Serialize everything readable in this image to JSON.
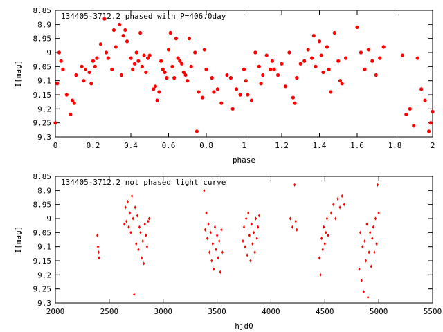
{
  "chart_data": [
    {
      "type": "scatter",
      "title": "134405-3712.2 phased with P=406.0day",
      "xlabel": "phase",
      "ylabel": "I[mag]",
      "xlim": [
        0,
        2
      ],
      "ylim": [
        9.3,
        8.85
      ],
      "y_inverted": true,
      "grid": false,
      "marker": "filled-circle",
      "color": "#ff0000",
      "x_ticks": [
        "0",
        "0.2",
        "0.4",
        "0.6",
        "0.8",
        "1",
        "1.2",
        "1.4",
        "1.6",
        "1.8",
        "2"
      ],
      "y_ticks": [
        "8.85",
        "8.9",
        "8.95",
        "9",
        "9.05",
        "9.1",
        "9.15",
        "9.2",
        "9.25",
        "9.3"
      ],
      "series": [
        {
          "x": [
            0.0,
            0.01,
            0.02,
            0.03,
            0.04,
            0.06,
            0.08,
            0.09,
            0.1,
            0.11,
            0.14,
            0.15,
            0.16,
            0.18,
            0.19,
            0.2,
            0.21,
            0.22,
            0.24,
            0.26,
            0.27,
            0.28,
            0.3,
            0.31,
            0.32,
            0.34,
            0.35,
            0.36,
            0.37,
            0.38,
            0.4,
            0.41,
            0.42,
            0.43,
            0.44,
            0.45,
            0.46,
            0.47,
            0.48,
            0.49,
            0.5,
            0.52,
            0.53,
            0.54,
            0.55,
            0.56,
            0.57,
            0.58,
            0.59,
            0.6,
            0.61,
            0.62,
            0.63,
            0.64,
            0.65,
            0.66,
            0.67,
            0.68,
            0.69,
            0.7,
            0.71,
            0.72,
            0.74,
            0.75,
            0.76,
            0.78,
            0.79,
            0.8,
            0.83,
            0.84,
            0.86,
            0.88,
            0.91,
            0.93,
            0.94,
            0.96,
            0.98,
            1.0,
            1.01,
            1.02,
            1.04,
            1.06,
            1.08,
            1.09,
            1.1,
            1.12,
            1.14,
            1.15,
            1.16,
            1.18,
            1.2,
            1.22,
            1.24,
            1.26,
            1.27,
            1.28,
            1.3,
            1.32,
            1.34,
            1.36,
            1.37,
            1.38,
            1.4,
            1.41,
            1.42,
            1.44,
            1.45,
            1.46,
            1.48,
            1.5,
            1.51,
            1.52,
            1.54,
            1.6,
            1.62,
            1.64,
            1.66,
            1.68,
            1.7,
            1.72,
            1.74,
            1.84,
            1.86,
            1.88,
            1.9,
            1.92,
            1.94,
            1.96,
            1.98,
            1.99,
            2.0
          ],
          "y": [
            9.25,
            9.11,
            9.0,
            9.03,
            9.06,
            9.15,
            9.22,
            9.17,
            9.18,
            9.08,
            9.05,
            9.1,
            9.06,
            9.07,
            9.11,
            9.03,
            9.05,
            9.02,
            8.97,
            8.88,
            9.0,
            9.02,
            9.06,
            8.92,
            8.98,
            8.9,
            9.08,
            8.94,
            8.92,
            8.96,
            9.02,
            9.06,
            9.04,
            9.0,
            9.03,
            8.93,
            9.05,
            9.01,
            9.07,
            9.02,
            9.01,
            9.13,
            9.12,
            9.17,
            9.14,
            9.03,
            9.06,
            9.07,
            9.09,
            8.99,
            8.93,
            9.05,
            9.09,
            8.95,
            9.02,
            9.03,
            9.04,
            9.07,
            9.08,
            9.1,
            8.95,
            9.05,
            9.0,
            9.28,
            9.14,
            9.16,
            8.99,
            9.06,
            9.09,
            9.14,
            9.13,
            9.18,
            9.08,
            9.09,
            9.2,
            9.13,
            9.15,
            9.06,
            9.1,
            9.15,
            9.17,
            9.0,
            9.05,
            9.11,
            9.08,
            9.01,
            9.06,
            9.03,
            9.06,
            9.08,
            9.04,
            9.12,
            9.0,
            9.16,
            9.18,
            9.09,
            9.04,
            9.03,
            8.99,
            9.02,
            8.94,
            9.05,
            8.96,
            9.01,
            9.07,
            8.98,
            9.06,
            9.14,
            8.93,
            9.03,
            9.1,
            9.11,
            9.02,
            8.91,
            9.0,
            9.06,
            8.99,
            9.03,
            9.08,
            9.02,
            8.98,
            9.01,
            9.22,
            9.2,
            9.26,
            9.02,
            9.13,
            9.17,
            9.28,
            9.25,
            9.21
          ]
        }
      ]
    },
    {
      "type": "scatter",
      "title": "134405-3712.2 not phased light curve",
      "xlabel": "hjd0",
      "ylabel": "I[mag]",
      "xlim": [
        2000,
        5500
      ],
      "ylim": [
        9.3,
        8.85
      ],
      "y_inverted": true,
      "grid": false,
      "marker": "diamond",
      "color": "#ff0000",
      "x_ticks": [
        "2000",
        "2500",
        "3000",
        "3500",
        "4000",
        "4500",
        "5000",
        "5500"
      ],
      "y_ticks": [
        "8.85",
        "8.9",
        "8.95",
        "9",
        "9.05",
        "9.1",
        "9.15",
        "9.2",
        "9.25",
        "9.3"
      ],
      "series": [
        {
          "x": [
            2390,
            2395,
            2400,
            2405,
            2640,
            2650,
            2660,
            2670,
            2680,
            2690,
            2700,
            2710,
            2720,
            2730,
            2740,
            2750,
            2760,
            2770,
            2780,
            2790,
            2800,
            2810,
            2820,
            2830,
            2840,
            2850,
            2860,
            2870,
            3380,
            3390,
            3400,
            3410,
            3420,
            3430,
            3440,
            3450,
            3460,
            3470,
            3480,
            3490,
            3500,
            3510,
            3520,
            3530,
            3540,
            3550,
            3740,
            3750,
            3760,
            3770,
            3780,
            3790,
            3800,
            3810,
            3820,
            3830,
            3840,
            3850,
            3860,
            3870,
            3880,
            3890,
            4180,
            4200,
            4220,
            4230,
            4240,
            4450,
            4460,
            4470,
            4480,
            4490,
            4500,
            4510,
            4520,
            4530,
            4560,
            4580,
            4600,
            4620,
            4640,
            4660,
            4680,
            4820,
            4830,
            4840,
            4850,
            4860,
            4870,
            4880,
            4890,
            4900,
            4910,
            4920,
            4930,
            4940,
            4950,
            4960,
            4970,
            4980,
            4990,
            5000
          ],
          "y": [
            9.06,
            9.1,
            9.12,
            9.14,
            9.02,
            8.96,
            9.01,
            8.94,
            9.03,
            8.98,
            9.05,
            8.92,
            9.0,
            9.27,
            8.96,
            9.09,
            8.99,
            9.11,
            9.03,
            9.05,
            9.14,
            9.08,
            9.16,
            9.02,
            9.06,
            9.1,
            9.01,
            9.0,
            8.9,
            9.04,
            8.98,
            9.07,
            9.02,
            9.12,
            9.05,
            9.15,
            9.09,
            9.18,
            9.03,
            9.11,
            9.06,
            9.14,
            9.08,
            9.19,
            9.04,
            9.12,
            9.08,
            9.03,
            9.1,
            9.0,
            9.13,
            8.98,
            9.06,
            9.15,
            9.02,
            9.09,
            9.05,
            9.12,
            9.0,
            9.07,
            9.03,
            8.99,
            9.0,
            9.03,
            8.88,
            9.01,
            9.04,
            9.14,
            9.2,
            9.07,
            9.11,
            9.03,
            9.09,
            9.05,
            9.0,
            9.06,
            8.98,
            8.95,
            9.0,
            8.93,
            8.96,
            8.92,
            8.95,
            9.18,
            9.05,
            9.22,
            9.1,
            9.26,
            9.08,
            9.15,
            9.02,
            9.28,
            9.12,
            9.05,
            9.17,
            9.07,
            9.03,
            9.12,
            9.0,
            9.09,
            8.88,
            8.98
          ]
        }
      ]
    }
  ]
}
